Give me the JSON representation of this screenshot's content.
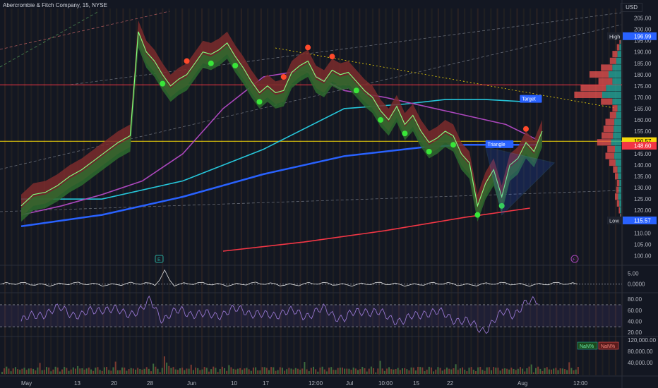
{
  "header": {
    "symbol_title": "Abercrombie & Fitch Company, 15, NYSE",
    "currency": "USD"
  },
  "colors": {
    "background": "#131722",
    "bull": "#26a69a",
    "bear": "#ef5350",
    "ma_cyan": "#26c6da",
    "ma_blue": "#2962ff",
    "ma_red": "#f23645",
    "ma_purple": "#ab47bc"
  },
  "chart_data": {
    "type": "line",
    "price_axis": {
      "ticks": [
        205,
        200,
        195,
        190,
        185,
        180,
        175,
        170,
        165,
        160,
        155,
        150,
        145,
        140,
        135,
        130,
        125,
        120,
        115,
        110,
        105,
        100
      ],
      "tick_labels": [
        "205.00",
        "200.00",
        "195.00",
        "190.00",
        "185.00",
        "180.00",
        "175.00",
        "170.00",
        "165.00",
        "160.00",
        "155.00",
        "150.00",
        "145.00",
        "140.00",
        "135.00",
        "130.00",
        "125.00",
        "120.00",
        "115.00",
        "110.00",
        "105.00",
        "100.00"
      ],
      "ylim": [
        97,
        208
      ]
    },
    "price_badges": [
      {
        "label": "High",
        "value": "196.99",
        "price": 196.99,
        "color": "#2962ff"
      },
      {
        "label": "",
        "value": "150.57",
        "price": 150.57,
        "color": "#f5d90a"
      },
      {
        "label": "",
        "value": "148.60",
        "price": 148.6,
        "color": "#f23645"
      },
      {
        "label": "Low",
        "value": "115.57",
        "price": 115.57,
        "color": "#2962ff"
      }
    ],
    "time_axis": {
      "labels": [
        "May",
        "13",
        "20",
        "28",
        "Jun",
        "10",
        "17",
        "12:00",
        "Jul",
        "10:00",
        "15",
        "22",
        "Aug",
        "12:00"
      ],
      "positions": [
        0,
        0.1,
        0.2,
        0.31,
        0.36,
        0.46,
        0.55,
        0.66,
        0.76,
        0.86,
        0.96,
        1.06,
        1.2,
        1.42
      ]
    },
    "price_series": {
      "name": "ANF",
      "x": [
        0,
        0.03,
        0.06,
        0.09,
        0.12,
        0.15,
        0.18,
        0.21,
        0.24,
        0.27,
        0.29,
        0.31,
        0.33,
        0.35,
        0.37,
        0.39,
        0.41,
        0.43,
        0.45,
        0.47,
        0.49,
        0.51,
        0.53,
        0.55,
        0.57,
        0.59,
        0.61,
        0.63,
        0.65,
        0.67,
        0.69,
        0.71,
        0.73,
        0.75,
        0.77,
        0.79,
        0.81,
        0.83,
        0.85,
        0.87,
        0.89,
        0.91,
        0.93,
        0.95,
        0.97,
        0.99,
        1.01,
        1.03,
        1.05,
        1.07,
        1.09,
        1.11,
        1.13,
        1.15,
        1.17,
        1.19,
        1.21,
        1.23,
        1.25,
        1.27,
        1.29
      ],
      "values": [
        122,
        127,
        128,
        131,
        135,
        138,
        142,
        146,
        150,
        153,
        199,
        190,
        186,
        180,
        175,
        178,
        180,
        185,
        190,
        189,
        191,
        194,
        188,
        183,
        177,
        172,
        175,
        172,
        173,
        181,
        184,
        186,
        179,
        177,
        182,
        180,
        181,
        177,
        173,
        170,
        164,
        160,
        166,
        158,
        162,
        155,
        150,
        152,
        155,
        153,
        145,
        141,
        122,
        132,
        138,
        126,
        140,
        143,
        150,
        146,
        155
      ]
    },
    "moving_averages": [
      {
        "color": "#26c6da",
        "x": [
          0,
          0.2,
          0.4,
          0.6,
          0.8,
          0.95,
          1.05,
          1.15,
          1.25
        ],
        "values": [
          125,
          125,
          133,
          147,
          165,
          167,
          169,
          169,
          168
        ]
      },
      {
        "color": "#2962ff",
        "x": [
          0,
          0.2,
          0.4,
          0.6,
          0.8,
          1.0,
          1.1,
          1.2,
          1.28
        ],
        "values": [
          113,
          118,
          126,
          136,
          144,
          148,
          149,
          149,
          149
        ]
      },
      {
        "color": "#f23645",
        "x": [
          0.5,
          0.7,
          0.9,
          1.1,
          1.26
        ],
        "values": [
          102,
          106,
          111,
          117,
          121
        ]
      },
      {
        "color": "#ab47bc",
        "x": [
          0,
          0.1,
          0.2,
          0.3,
          0.4,
          0.5,
          0.6,
          0.7,
          0.8,
          0.9,
          1.0,
          1.1,
          1.2,
          1.28
        ],
        "values": [
          118,
          122,
          127,
          133,
          145,
          165,
          179,
          182,
          173,
          170,
          166,
          162,
          158,
          151
        ]
      }
    ],
    "horizontal_levels": [
      {
        "price": 175.5,
        "color": "#f23645"
      },
      {
        "price": 150.57,
        "color": "#f5d90a"
      }
    ],
    "annotations": [
      {
        "text": "Target",
        "x": 1.24,
        "price": 168.5
      },
      {
        "text": "Triangle",
        "x": 1.155,
        "price": 148.5
      }
    ],
    "volume_profile": {
      "prices": [
        195,
        192,
        189,
        186,
        183,
        180,
        177,
        174,
        171,
        168,
        165,
        162,
        159,
        156,
        153,
        150,
        147,
        144,
        141,
        138,
        135,
        132,
        129,
        126,
        123,
        120,
        117
      ],
      "buy": [
        1,
        3,
        6,
        8,
        14,
        20,
        14,
        24,
        30,
        14,
        6,
        8,
        11,
        12,
        13,
        16,
        10,
        11,
        9,
        6,
        5,
        3,
        4,
        5,
        3,
        2,
        1
      ],
      "sell": [
        2,
        4,
        8,
        10,
        18,
        30,
        22,
        40,
        44,
        18,
        8,
        10,
        14,
        16,
        18,
        22,
        12,
        14,
        10,
        7,
        5,
        4,
        4,
        5,
        4,
        2,
        1
      ]
    },
    "indicator_panels": [
      {
        "name": "momentum",
        "tick_labels": [
          "5.00",
          "0.0000"
        ],
        "ticks": [
          5,
          0
        ],
        "ylim": [
          -3,
          8
        ]
      },
      {
        "name": "rsi",
        "tick_labels": [
          "80.00",
          "60.00",
          "40.00",
          "20.00"
        ],
        "ticks": [
          80,
          60,
          40,
          20
        ],
        "ylim": [
          15,
          88
        ]
      },
      {
        "name": "volume",
        "tick_labels": [
          "120,000.00",
          "80,000.00",
          "40,000.00"
        ],
        "ticks": [
          120000,
          80000,
          40000
        ],
        "ylim": [
          0,
          125000
        ]
      }
    ],
    "rsi_series": {
      "x": [
        0,
        0.05,
        0.1,
        0.15,
        0.2,
        0.25,
        0.3,
        0.32,
        0.35,
        0.4,
        0.45,
        0.5,
        0.55,
        0.6,
        0.65,
        0.7,
        0.75,
        0.8,
        0.85,
        0.9,
        0.95,
        1.0,
        1.05,
        1.1,
        1.15,
        1.18,
        1.2,
        1.22,
        1.25,
        1.28
      ],
      "values": [
        40,
        55,
        62,
        50,
        65,
        55,
        60,
        78,
        45,
        60,
        50,
        55,
        62,
        48,
        58,
        52,
        60,
        45,
        62,
        50,
        40,
        58,
        52,
        38,
        25,
        45,
        60,
        55,
        70,
        80
      ]
    },
    "volume_badges": [
      "NaN%",
      "NaN%"
    ],
    "event_markers": [
      "E",
      "⚡"
    ]
  }
}
